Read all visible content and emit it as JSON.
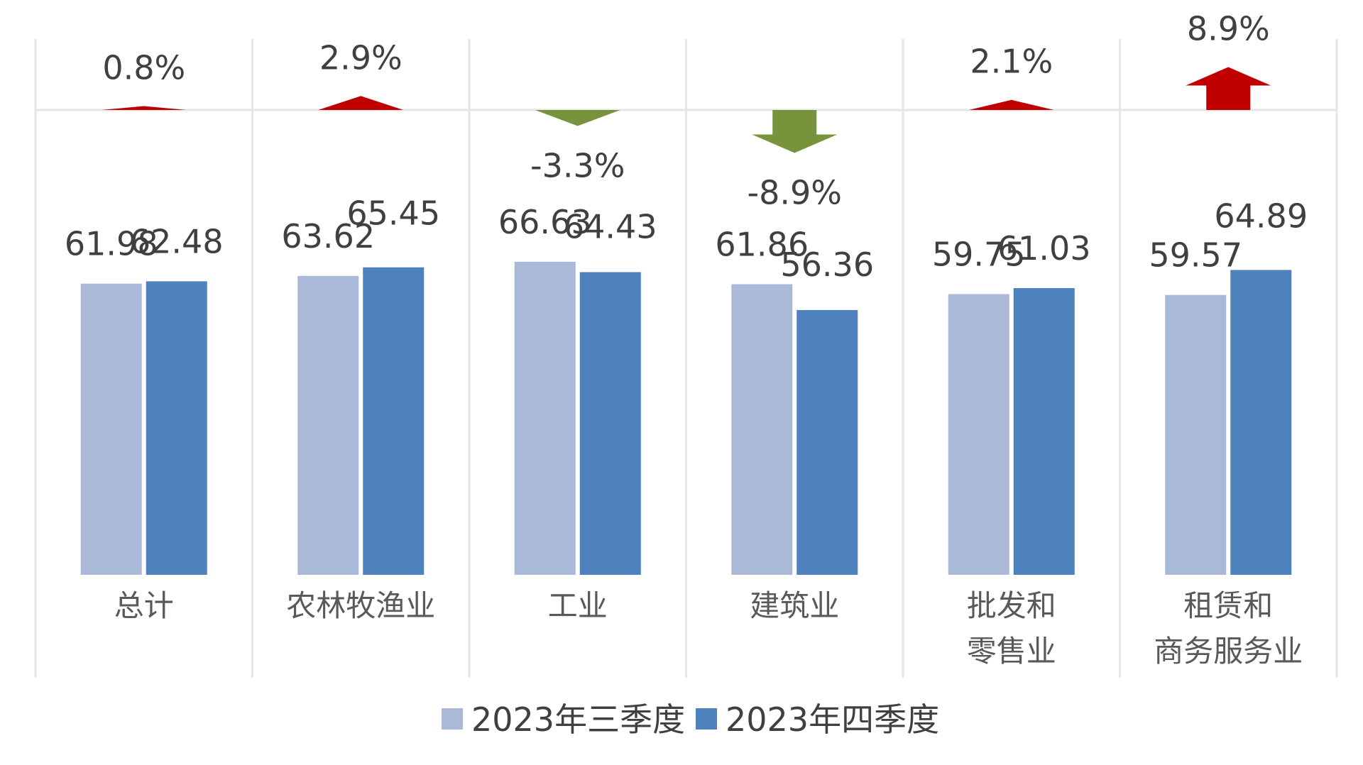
{
  "colors": {
    "q3": "#aab9d8",
    "q4": "#4f81bd",
    "up": "#c00000",
    "down": "#77933c",
    "grid": "#e6e6e6"
  },
  "chart_data": {
    "type": "bar",
    "title": "",
    "xlabel": "",
    "ylabel": "",
    "categories": [
      [
        "总计"
      ],
      [
        "农林牧渔业"
      ],
      [
        "工业"
      ],
      [
        "建筑业"
      ],
      [
        "批发和",
        "零售业"
      ],
      [
        "租赁和",
        "商务服务业"
      ]
    ],
    "series": [
      {
        "name": "2023年三季度",
        "values": [
          61.98,
          63.62,
          66.63,
          61.86,
          59.75,
          59.57
        ],
        "labels": [
          "61.98",
          "63.62",
          "66.63",
          "61.86",
          "59.75",
          "59.57"
        ]
      },
      {
        "name": "2023年四季度",
        "values": [
          62.48,
          65.45,
          64.43,
          56.36,
          61.03,
          64.89
        ],
        "labels": [
          "62.48",
          "65.45",
          "64.43",
          "56.36",
          "61.03",
          "64.89"
        ]
      }
    ],
    "change": {
      "values": [
        0.8,
        2.9,
        -3.3,
        -8.9,
        2.1,
        8.9
      ],
      "labels": [
        "0.8%",
        "2.9%",
        "-3.3%",
        "-8.9%",
        "2.1%",
        "8.9%"
      ]
    },
    "ylim": [
      0,
      70
    ],
    "grid": false,
    "legend_position": "bottom-center"
  }
}
